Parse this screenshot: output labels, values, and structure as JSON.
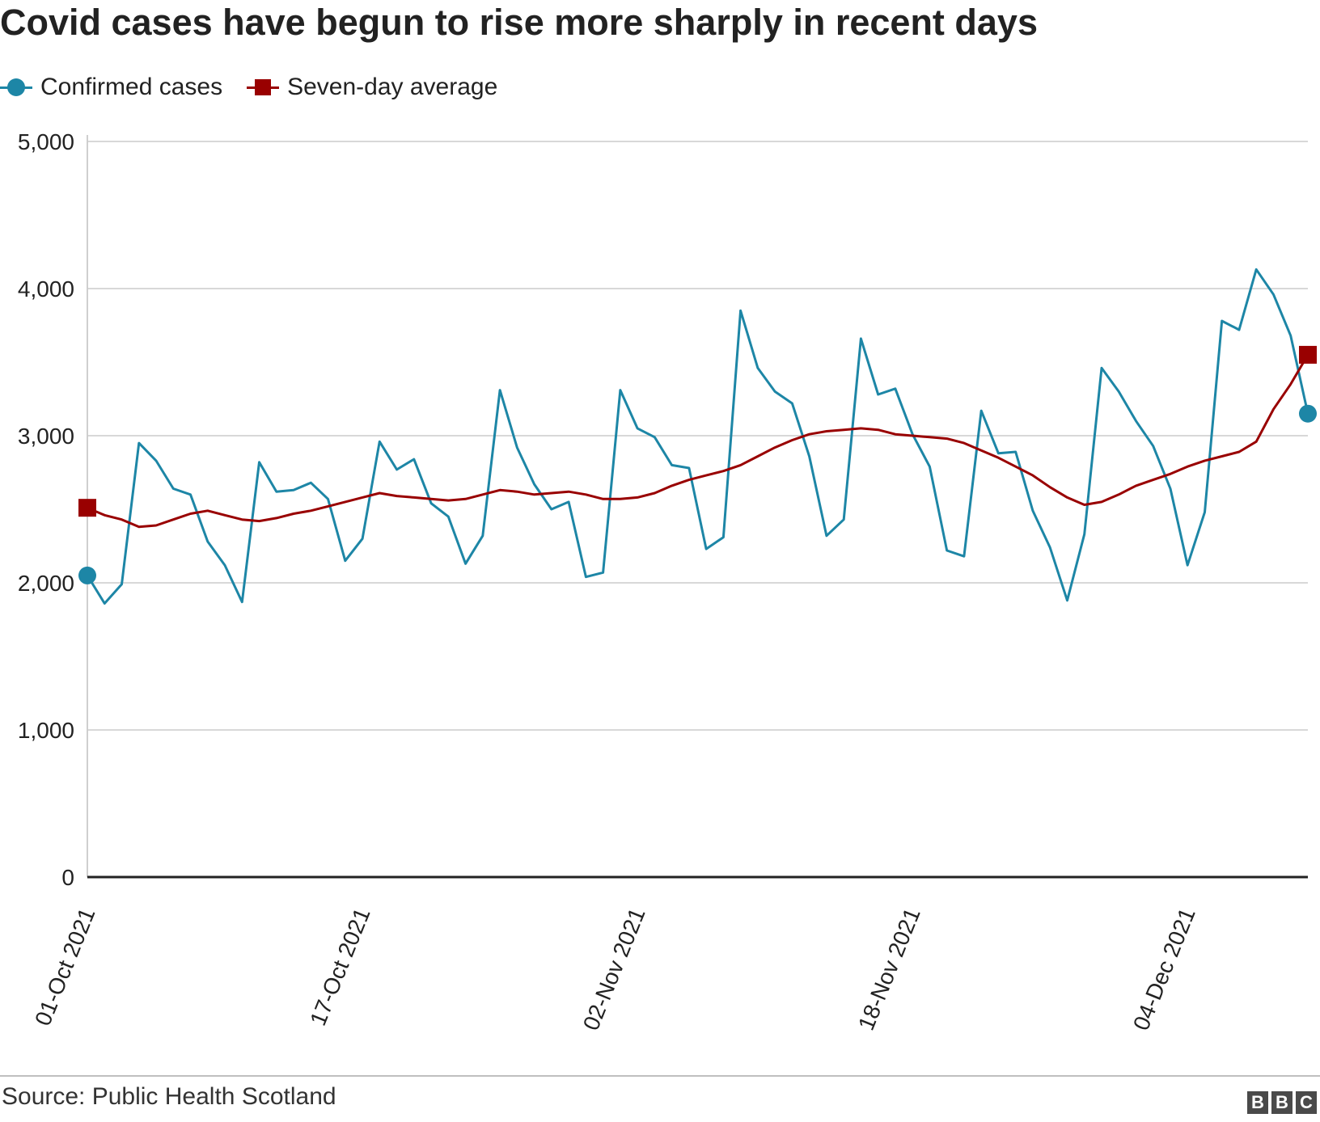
{
  "header": {
    "title": "Covid cases have begun to rise more sharply in recent days"
  },
  "legend": {
    "items": [
      {
        "label": "Confirmed cases",
        "color": "#1d86a6",
        "marker": "circle"
      },
      {
        "label": "Seven-day average",
        "color": "#990000",
        "marker": "square"
      }
    ]
  },
  "chart_data": {
    "type": "line",
    "title": "Covid cases have begun to rise more sharply in recent days",
    "xlabel": "",
    "ylabel": "",
    "ylim": [
      0,
      5000
    ],
    "yticks": [
      0,
      1000,
      2000,
      3000,
      4000,
      5000
    ],
    "ytick_labels": [
      "0",
      "1,000",
      "2,000",
      "3,000",
      "4,000",
      "5,000"
    ],
    "x_start": "01-Oct-2021",
    "x_end": "11-Dec-2021",
    "x_tick_labels": [
      {
        "index": 0,
        "label": "01-Oct 2021"
      },
      {
        "index": 16,
        "label": "17-Oct 2021"
      },
      {
        "index": 32,
        "label": "02-Nov 2021"
      },
      {
        "index": 48,
        "label": "18-Nov 2021"
      },
      {
        "index": 64,
        "label": "04-Dec 2021"
      }
    ],
    "grid": true,
    "legend_position": "top-left",
    "series": [
      {
        "name": "Confirmed cases",
        "color": "#1d86a6",
        "values": [
          2050,
          1860,
          1990,
          2950,
          2830,
          2640,
          2600,
          2280,
          2120,
          1870,
          2820,
          2620,
          2630,
          2680,
          2570,
          2150,
          2300,
          2960,
          2770,
          2840,
          2540,
          2450,
          2130,
          2320,
          3310,
          2920,
          2670,
          2500,
          2550,
          2040,
          2070,
          3310,
          3050,
          2990,
          2800,
          2780,
          2230,
          2310,
          3850,
          3460,
          3300,
          3220,
          2860,
          2320,
          2430,
          3660,
          3280,
          3320,
          3010,
          2790,
          2220,
          2180,
          3170,
          2880,
          2890,
          2490,
          2240,
          1880,
          2330,
          3460,
          3300,
          3100,
          2930,
          2640,
          2120,
          2480,
          3780,
          3720,
          4130,
          3960,
          3680,
          3150
        ]
      },
      {
        "name": "Seven-day average",
        "color": "#990000",
        "values": [
          2510,
          2460,
          2430,
          2380,
          2390,
          2430,
          2470,
          2490,
          2460,
          2430,
          2420,
          2440,
          2470,
          2490,
          2520,
          2550,
          2580,
          2610,
          2590,
          2580,
          2570,
          2560,
          2570,
          2600,
          2630,
          2620,
          2600,
          2610,
          2620,
          2600,
          2570,
          2570,
          2580,
          2610,
          2660,
          2700,
          2730,
          2760,
          2800,
          2860,
          2920,
          2970,
          3010,
          3030,
          3040,
          3050,
          3040,
          3010,
          3000,
          2990,
          2980,
          2950,
          2900,
          2850,
          2790,
          2730,
          2650,
          2580,
          2530,
          2550,
          2600,
          2660,
          2700,
          2740,
          2790,
          2830,
          2860,
          2890,
          2960,
          3180,
          3350,
          3550
        ]
      }
    ]
  },
  "footer": {
    "source": "Source: Public Health Scotland",
    "logo_letters": [
      "B",
      "B",
      "C"
    ]
  }
}
